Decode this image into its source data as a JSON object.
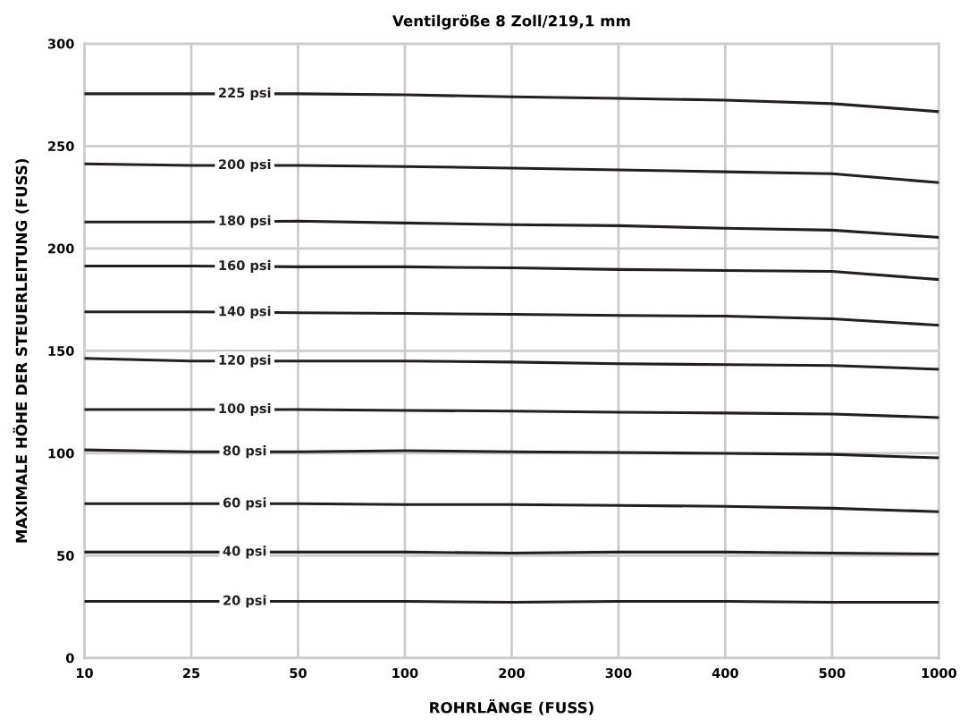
{
  "chart_data": {
    "type": "line",
    "title": "Ventilgröße 8 Zoll/219,1 mm",
    "xlabel": "ROHRLÄNGE (FUSS)",
    "ylabel": "MAXIMALE HÖHE DER STEUERLEITUNG (FUSS)",
    "categories": [
      "10",
      "25",
      "50",
      "100",
      "200",
      "300",
      "400",
      "500",
      "1000"
    ],
    "ylim": [
      0,
      300
    ],
    "yticks": [
      0,
      50,
      100,
      150,
      200,
      250,
      300
    ],
    "grid": true,
    "legend": false,
    "marker": "none",
    "line_style": "solid",
    "series": [
      {
        "name": "225 psi",
        "color": "#231f20",
        "values": [
          275.5,
          275.5,
          275.5,
          275,
          274,
          273.3,
          272.4,
          270.7,
          266.8
        ]
      },
      {
        "name": "200 psi",
        "color": "#231f20",
        "values": [
          241.3,
          240.5,
          240.5,
          240,
          239.2,
          238.3,
          237.4,
          236.5,
          232.1
        ]
      },
      {
        "name": "180 psi",
        "color": "#231f20",
        "values": [
          212.9,
          212.9,
          213.3,
          212.4,
          211.6,
          211.1,
          209.8,
          208.9,
          205.4
        ]
      },
      {
        "name": "160 psi",
        "color": "#231f20",
        "values": [
          191.4,
          191.4,
          191,
          191,
          190.5,
          189.7,
          189.2,
          188.8,
          184.8
        ]
      },
      {
        "name": "140 psi",
        "color": "#231f20",
        "values": [
          169,
          169,
          168.6,
          168.2,
          167.8,
          167.3,
          166.9,
          165.6,
          162.5
        ]
      },
      {
        "name": "120 psi",
        "color": "#231f20",
        "values": [
          146.3,
          145,
          145,
          145,
          144.5,
          143.7,
          143.2,
          142.8,
          141
        ]
      },
      {
        "name": "100 psi",
        "color": "#231f20",
        "values": [
          121.3,
          121.3,
          121.3,
          120.9,
          120.5,
          120,
          119.6,
          119.1,
          117.4
        ]
      },
      {
        "name": "80 psi",
        "color": "#231f20",
        "values": [
          101.6,
          100.7,
          100.7,
          101.2,
          100.7,
          100.3,
          99.9,
          99.4,
          97.7
        ]
      },
      {
        "name": "60 psi",
        "color": "#231f20",
        "values": [
          75.3,
          75.3,
          75.3,
          74.9,
          74.9,
          74.5,
          74,
          73.1,
          71.4
        ]
      },
      {
        "name": "40 psi",
        "color": "#231f20",
        "values": [
          51.7,
          51.7,
          51.7,
          51.7,
          51.2,
          51.7,
          51.7,
          51.2,
          50.8
        ]
      },
      {
        "name": "20 psi",
        "color": "#231f20",
        "values": [
          27.6,
          27.6,
          27.6,
          27.6,
          27.2,
          27.6,
          27.6,
          27.2,
          27.2
        ]
      }
    ]
  }
}
